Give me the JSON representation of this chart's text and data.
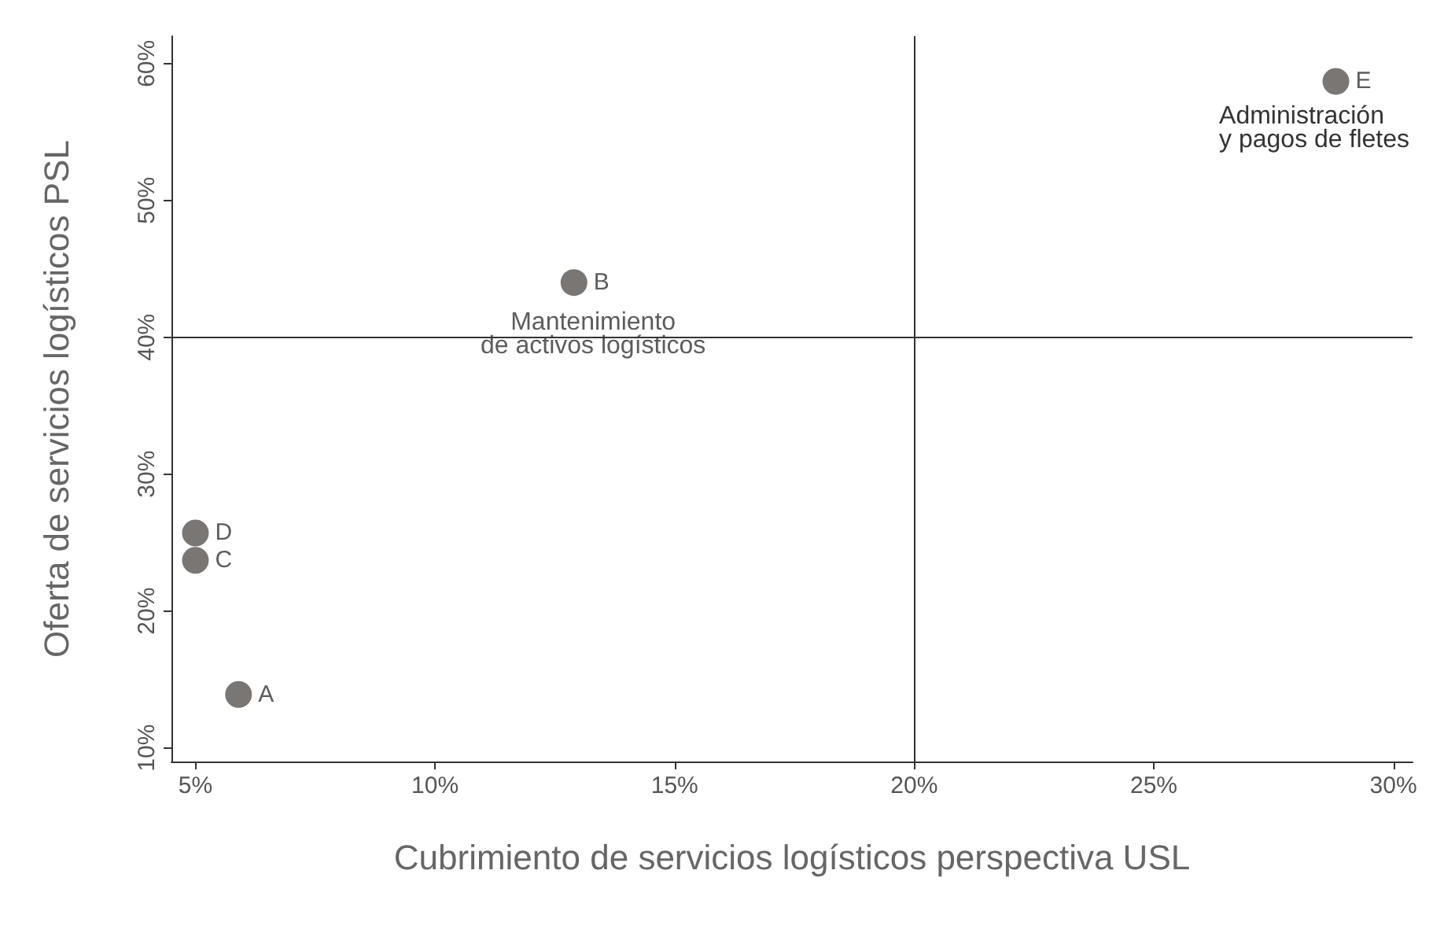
{
  "chart_data": {
    "type": "scatter",
    "xlabel": "Cubrimiento de servicios logísticos perspectiva USL",
    "ylabel": "Oferta de servicios logísticos PSL",
    "x": [
      5.9,
      12.9,
      5,
      5,
      28.8
    ],
    "series": [
      {
        "color": "#595451",
        "values": [
          13.9,
          44,
          23.7,
          25.7,
          58.7
        ],
        "value_labels": [
          "A",
          "B",
          "C",
          "D",
          "E"
        ]
      }
    ],
    "marker": "circle",
    "xlim": [
      4.5,
      30.4
    ],
    "ylim": [
      9,
      62
    ],
    "xticks": [
      {
        "value": 5,
        "label": "5%"
      },
      {
        "value": 10,
        "label": "10%"
      },
      {
        "value": 15,
        "label": "15%"
      },
      {
        "value": 20,
        "label": "20%"
      },
      {
        "value": 25,
        "label": "25%"
      },
      {
        "value": 30,
        "label": "30%"
      }
    ],
    "yticks": [
      {
        "value": 10,
        "label": "10%"
      },
      {
        "value": 20,
        "label": "20%"
      },
      {
        "value": 30,
        "label": "30%"
      },
      {
        "value": 40,
        "label": "40%"
      },
      {
        "value": 50,
        "label": "50%"
      },
      {
        "value": 60,
        "label": "60%"
      }
    ],
    "ref_lines": [
      {
        "axis": "x",
        "value": 20,
        "color": "#333333"
      },
      {
        "axis": "y",
        "value": 40,
        "color": "#333333"
      }
    ],
    "annotations": [
      {
        "text": "Mantenimiento\nde activos logísticos",
        "x": 13.3,
        "y": 40.2
      },
      "Administración\ny pagos de fletes"
    ],
    "grid": false
  }
}
